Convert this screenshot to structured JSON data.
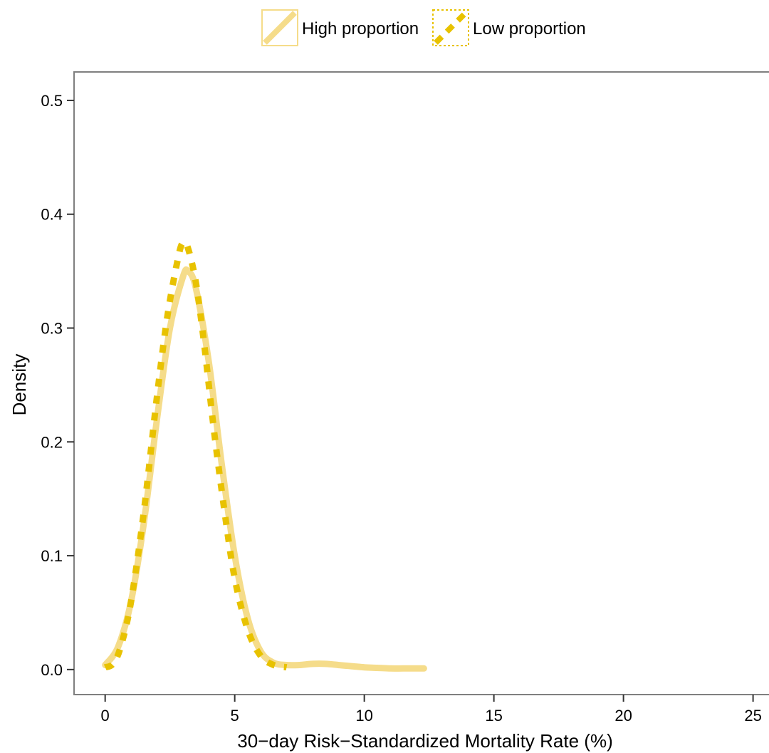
{
  "chart_data": {
    "type": "line",
    "title": "",
    "xlabel": "30−day Risk−Standardized Mortality Rate (%)",
    "ylabel": "Density",
    "xlim": [
      -1.2,
      26
    ],
    "ylim": [
      -0.022,
      0.525
    ],
    "x_ticks": [
      0,
      5,
      10,
      15,
      20,
      25
    ],
    "x_tick_labels": [
      "0",
      "5",
      "10",
      "15",
      "20",
      "25"
    ],
    "y_ticks": [
      0.0,
      0.1,
      0.2,
      0.3,
      0.4,
      0.5
    ],
    "y_tick_labels": [
      "0.0",
      "0.1",
      "0.2",
      "0.3",
      "0.4",
      "0.5"
    ],
    "grid": false,
    "legend_position": "top",
    "series": [
      {
        "name": "High proportion",
        "color": "#F5DC8A",
        "line_style": "solid",
        "x": [
          0.0,
          0.5,
          1.0,
          1.5,
          2.0,
          2.5,
          3.0,
          3.2,
          3.5,
          4.0,
          4.5,
          5.0,
          5.5,
          6.0,
          6.5,
          7.0,
          7.5,
          8.0,
          8.5,
          9.0,
          9.5,
          10.0,
          10.5,
          11.0,
          11.5,
          12.0,
          12.3
        ],
        "y": [
          0.004,
          0.02,
          0.06,
          0.13,
          0.22,
          0.3,
          0.345,
          0.35,
          0.335,
          0.27,
          0.18,
          0.1,
          0.045,
          0.016,
          0.006,
          0.004,
          0.004,
          0.005,
          0.005,
          0.004,
          0.003,
          0.002,
          0.0015,
          0.001,
          0.001,
          0.001,
          0.001
        ]
      },
      {
        "name": "Low proportion",
        "color": "#E8C200",
        "line_style": "dashed",
        "x": [
          0.0,
          0.3,
          0.6,
          1.0,
          1.5,
          2.0,
          2.4,
          2.8,
          3.0,
          3.2,
          3.5,
          3.8,
          4.2,
          4.6,
          5.0,
          5.5,
          6.0,
          6.5,
          7.0
        ],
        "y": [
          0.002,
          0.005,
          0.02,
          0.06,
          0.14,
          0.24,
          0.31,
          0.36,
          0.375,
          0.37,
          0.34,
          0.29,
          0.21,
          0.14,
          0.08,
          0.035,
          0.012,
          0.004,
          0.002
        ]
      }
    ]
  }
}
